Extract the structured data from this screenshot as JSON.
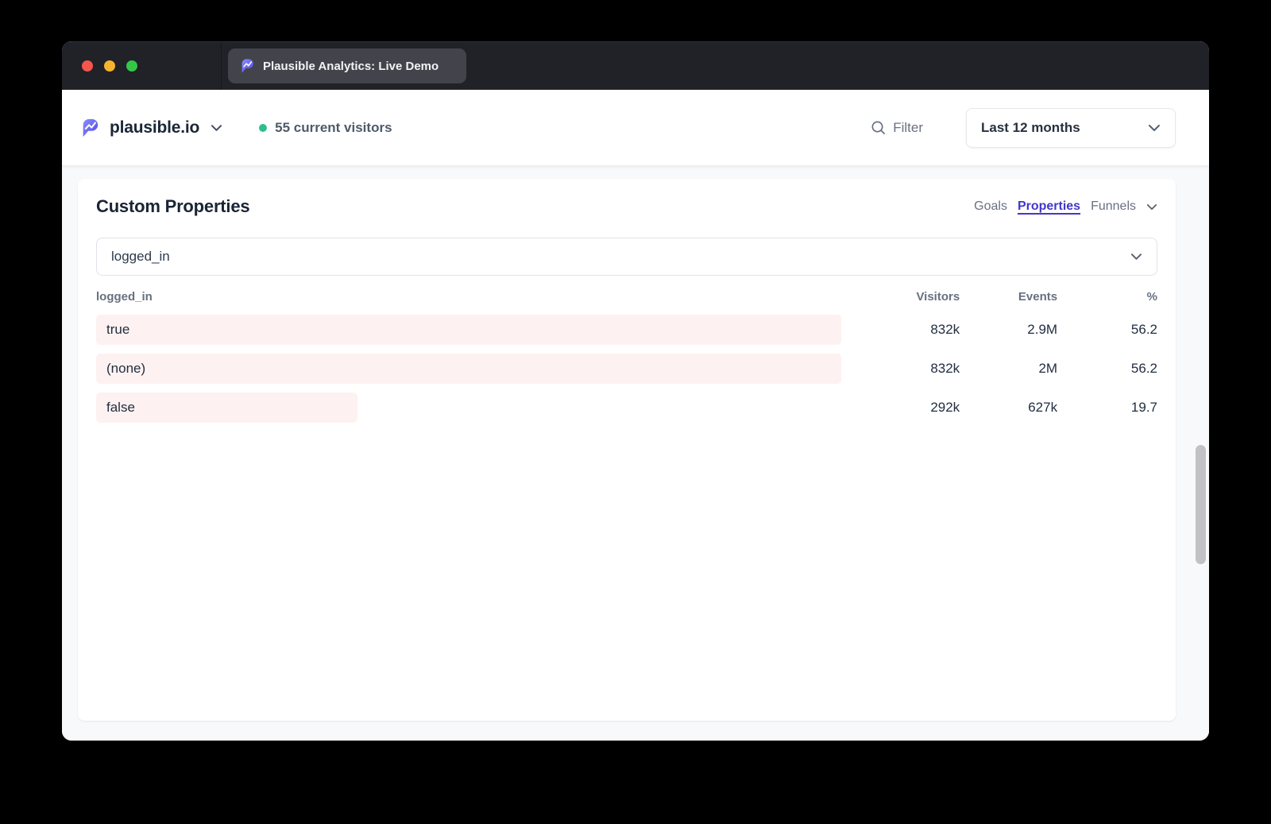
{
  "window": {
    "tab_title": "Plausible Analytics: Live Demo"
  },
  "header": {
    "site_name": "plausible.io",
    "live_visitors": "55 current visitors",
    "filter_label": "Filter",
    "date_range": "Last 12 months"
  },
  "panel": {
    "title": "Custom Properties",
    "tabs": [
      {
        "label": "Goals",
        "active": false
      },
      {
        "label": "Properties",
        "active": true
      },
      {
        "label": "Funnels",
        "active": false
      }
    ],
    "property_select": {
      "value": "logged_in"
    },
    "table": {
      "key_header": "logged_in",
      "columns": [
        "Visitors",
        "Events",
        "%"
      ],
      "rows": [
        {
          "label": "true",
          "visitors": "832k",
          "events": "2.9M",
          "percent": "56.2",
          "bar_pct": 100
        },
        {
          "label": "(none)",
          "visitors": "832k",
          "events": "2M",
          "percent": "56.2",
          "bar_pct": 100
        },
        {
          "label": "false",
          "visitors": "292k",
          "events": "627k",
          "percent": "19.7",
          "bar_pct": 35.1
        }
      ]
    }
  },
  "colors": {
    "accent": "#4338ca",
    "bar-pink": "#fdf2f1",
    "live-green": "#2ebe8d",
    "brand-indigo": "#5850ec",
    "titlebar": "#212227"
  }
}
